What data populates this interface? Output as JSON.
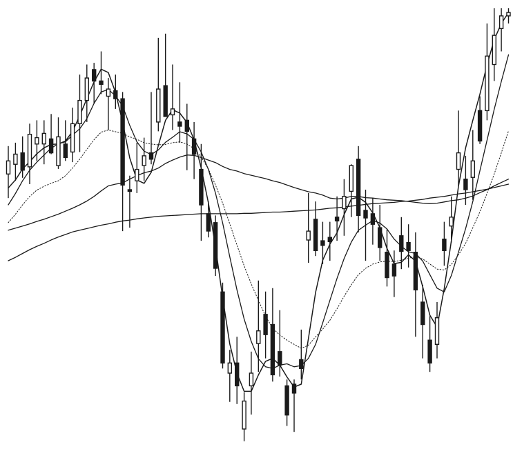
{
  "chart_data": {
    "type": "candlestick",
    "title": "",
    "xlabel": "",
    "ylabel": "",
    "axes_visible": false,
    "grid": false,
    "legend": "none",
    "ylim": [
      0,
      100
    ],
    "colors": {
      "ink": "#1a1a1a",
      "background": "#ffffff"
    },
    "candles": [
      {
        "i": 0,
        "o": 60.8,
        "h": 67.4,
        "l": 55.1,
        "c": 63.9
      },
      {
        "i": 1,
        "o": 63.1,
        "h": 68.2,
        "l": 59.2,
        "c": 65.5
      },
      {
        "i": 2,
        "o": 65.8,
        "h": 69.7,
        "l": 59.9,
        "c": 61.7
      },
      {
        "i": 3,
        "o": 62.5,
        "h": 72.7,
        "l": 58.4,
        "c": 70.2
      },
      {
        "i": 4,
        "o": 67.9,
        "h": 73.5,
        "l": 63.9,
        "c": 69.4
      },
      {
        "i": 5,
        "o": 67.9,
        "h": 73.5,
        "l": 63.1,
        "c": 70.4
      },
      {
        "i": 6,
        "o": 69.1,
        "h": 75.0,
        "l": 65.5,
        "c": 65.8
      },
      {
        "i": 7,
        "o": 62.8,
        "h": 74.2,
        "l": 62.0,
        "c": 69.6
      },
      {
        "i": 8,
        "o": 67.9,
        "h": 73.5,
        "l": 63.9,
        "c": 64.7
      },
      {
        "i": 9,
        "o": 66.0,
        "h": 76.5,
        "l": 63.6,
        "c": 72.7
      },
      {
        "i": 10,
        "o": 72.7,
        "h": 84.3,
        "l": 66.0,
        "c": 78.2
      },
      {
        "i": 11,
        "o": 78.2,
        "h": 86.7,
        "l": 73.1,
        "c": 83.5
      },
      {
        "i": 12,
        "o": 85.5,
        "h": 87.1,
        "l": 77.4,
        "c": 82.8
      },
      {
        "i": 13,
        "o": 82.8,
        "h": 89.8,
        "l": 79.7,
        "c": 82.0
      },
      {
        "i": 14,
        "o": 79.2,
        "h": 83.5,
        "l": 71.2,
        "c": 80.9
      },
      {
        "i": 15,
        "o": 80.5,
        "h": 84.3,
        "l": 76.2,
        "c": 78.6
      },
      {
        "i": 16,
        "o": 78.6,
        "h": 80.2,
        "l": 47.3,
        "c": 58.2
      },
      {
        "i": 17,
        "o": 57.1,
        "h": 60.4,
        "l": 48.1,
        "c": 56.7
      },
      {
        "i": 18,
        "o": 59.2,
        "h": 68.2,
        "l": 56.3,
        "c": 61.9
      },
      {
        "i": 19,
        "o": 62.8,
        "h": 69.4,
        "l": 59.2,
        "c": 65.1
      },
      {
        "i": 20,
        "o": 65.8,
        "h": 80.2,
        "l": 63.1,
        "c": 64.3
      },
      {
        "i": 21,
        "o": 73.1,
        "h": 93.0,
        "l": 70.9,
        "c": 80.9
      },
      {
        "i": 22,
        "o": 81.7,
        "h": 94.0,
        "l": 74.4,
        "c": 74.4
      },
      {
        "i": 23,
        "o": 74.8,
        "h": 86.7,
        "l": 71.2,
        "c": 76.2
      },
      {
        "i": 24,
        "o": 73.1,
        "h": 82.5,
        "l": 68.2,
        "c": 72.1
      },
      {
        "i": 25,
        "o": 73.5,
        "h": 77.4,
        "l": 61.7,
        "c": 70.9
      },
      {
        "i": 26,
        "o": 69.1,
        "h": 73.1,
        "l": 59.6,
        "c": 65.5
      },
      {
        "i": 27,
        "o": 61.9,
        "h": 67.9,
        "l": 45.0,
        "c": 53.5
      },
      {
        "i": 28,
        "o": 51.4,
        "h": 54.3,
        "l": 45.8,
        "c": 47.3
      },
      {
        "i": 29,
        "o": 49.3,
        "h": 51.0,
        "l": 36.7,
        "c": 38.5
      },
      {
        "i": 30,
        "o": 32.9,
        "h": 35.1,
        "l": 14.8,
        "c": 16.1
      },
      {
        "i": 31,
        "o": 13.7,
        "h": 19.2,
        "l": 6.9,
        "c": 16.1
      },
      {
        "i": 32,
        "o": 16.1,
        "h": 22.3,
        "l": 6.4,
        "c": 10.7
      },
      {
        "i": 33,
        "o": 0.5,
        "h": 9.2,
        "l": -2.4,
        "c": 7.1
      },
      {
        "i": 34,
        "o": 10.7,
        "h": 18.8,
        "l": 3.9,
        "c": 13.7
      },
      {
        "i": 35,
        "o": 20.7,
        "h": 35.6,
        "l": 14.0,
        "c": 23.7
      },
      {
        "i": 36,
        "o": 27.6,
        "h": 33.0,
        "l": 17.2,
        "c": 22.8
      },
      {
        "i": 37,
        "o": 25.2,
        "h": 33.8,
        "l": 11.7,
        "c": 13.3
      },
      {
        "i": 38,
        "o": 18.8,
        "h": 28.6,
        "l": 12.9,
        "c": 15.6
      },
      {
        "i": 39,
        "o": 10.7,
        "h": 12.2,
        "l": 1.2,
        "c": 3.8
      },
      {
        "i": 40,
        "o": 11.1,
        "h": 12.2,
        "l": -0.2,
        "c": 9.0
      },
      {
        "i": 41,
        "o": 16.9,
        "h": 24.0,
        "l": 12.2,
        "c": 14.8
      },
      {
        "i": 42,
        "o": 45.2,
        "h": 56.3,
        "l": 39.8,
        "c": 47.3
      },
      {
        "i": 43,
        "o": 50.1,
        "h": 54.3,
        "l": 41.4,
        "c": 42.7
      },
      {
        "i": 44,
        "o": 45.0,
        "h": 49.5,
        "l": 39.5,
        "c": 43.9
      },
      {
        "i": 45,
        "o": 45.8,
        "h": 49.5,
        "l": 40.3,
        "c": 44.8
      },
      {
        "i": 46,
        "o": 50.6,
        "h": 55.5,
        "l": 45.0,
        "c": 49.7
      },
      {
        "i": 47,
        "o": 52.6,
        "h": 59.6,
        "l": 46.2,
        "c": 55.5
      },
      {
        "i": 48,
        "o": 56.7,
        "h": 63.1,
        "l": 50.6,
        "c": 62.8
      },
      {
        "i": 49,
        "o": 64.3,
        "h": 67.4,
        "l": 47.0,
        "c": 51.0
      },
      {
        "i": 50,
        "o": 52.2,
        "h": 57.1,
        "l": 40.3,
        "c": 50.4
      },
      {
        "i": 51,
        "o": 51.4,
        "h": 55.1,
        "l": 44.1,
        "c": 48.9
      },
      {
        "i": 52,
        "o": 48.1,
        "h": 53.5,
        "l": 40.3,
        "c": 43.4
      },
      {
        "i": 53,
        "o": 42.3,
        "h": 47.7,
        "l": 34.2,
        "c": 36.3
      },
      {
        "i": 54,
        "o": 39.5,
        "h": 42.7,
        "l": 31.7,
        "c": 36.7
      },
      {
        "i": 55,
        "o": 46.2,
        "h": 50.6,
        "l": 38.3,
        "c": 42.5
      },
      {
        "i": 56,
        "o": 44.6,
        "h": 48.9,
        "l": 38.7,
        "c": 42.7
      },
      {
        "i": 57,
        "o": 42.3,
        "h": 47.0,
        "l": 22.3,
        "c": 33.4
      },
      {
        "i": 58,
        "o": 30.5,
        "h": 34.6,
        "l": 17.2,
        "c": 25.2
      },
      {
        "i": 59,
        "o": 21.5,
        "h": 27.2,
        "l": 14.0,
        "c": 16.1
      },
      {
        "i": 60,
        "o": 20.5,
        "h": 30.5,
        "l": 17.2,
        "c": 26.8
      },
      {
        "i": 61,
        "o": 45.4,
        "h": 49.5,
        "l": 39.1,
        "c": 42.7
      },
      {
        "i": 62,
        "o": 48.5,
        "h": 55.5,
        "l": 44.6,
        "c": 50.6
      },
      {
        "i": 63,
        "o": 61.9,
        "h": 75.8,
        "l": 57.9,
        "c": 65.8
      },
      {
        "i": 64,
        "o": 59.6,
        "h": 65.1,
        "l": 53.5,
        "c": 57.1
      },
      {
        "i": 65,
        "o": 60.0,
        "h": 71.2,
        "l": 54.7,
        "c": 63.9
      },
      {
        "i": 66,
        "o": 75.8,
        "h": 79.2,
        "l": 67.9,
        "c": 68.6
      },
      {
        "i": 67,
        "o": 75.8,
        "h": 96.4,
        "l": 73.5,
        "c": 88.7
      },
      {
        "i": 68,
        "o": 86.7,
        "h": 100.0,
        "l": 82.8,
        "c": 93.6
      },
      {
        "i": 69,
        "o": 95.2,
        "h": 100.0,
        "l": 89.8,
        "c": 98.2
      },
      {
        "i": 70,
        "o": 98.2,
        "h": 100.0,
        "l": 96.4,
        "c": 99.0
      }
    ],
    "moving_averages": [
      {
        "period": "fast",
        "style": "solid",
        "width": 1.5,
        "values": [
          57.5,
          59.4,
          62.0,
          63.7,
          65.6,
          67.0,
          67.8,
          67.9,
          68.6,
          70.9,
          74.6,
          78.6,
          82.6,
          85.6,
          84.8,
          80.1,
          73.1,
          64.6,
          59.4,
          58.6,
          61.2,
          67.5,
          73.5,
          76.0,
          75.2,
          73.0,
          68.9,
          62.2,
          54.0,
          43.6,
          31.5,
          20.6,
          13.7,
          9.4,
          9.4,
          13.3,
          16.5,
          17.2,
          15.6,
          12.8,
          10.4,
          11.1,
          21.9,
          32.8,
          40.4,
          44.2,
          46.9,
          51.2,
          54.9,
          55.3,
          54.1,
          51.6,
          48.1,
          43.2,
          39.6,
          39.9,
          41.7,
          40.2,
          34.1,
          27.4,
          24.6,
          33.7,
          45.0,
          57.9,
          67.0,
          73.5,
          79.7,
          86.6,
          92.6,
          96.4,
          99.0
        ]
      },
      {
        "period": "medium",
        "style": "solid",
        "width": 1.3,
        "values": [
          53.5,
          56.2,
          59.2,
          61.7,
          63.6,
          65.3,
          66.9,
          68.0,
          68.4,
          70.0,
          71.5,
          73.9,
          77.5,
          80.2,
          80.8,
          79.3,
          76.9,
          72.3,
          68.4,
          66.2,
          65.4,
          66.5,
          68.3,
          69.5,
          70.8,
          70.3,
          69.0,
          66.0,
          61.9,
          56.3,
          49.2,
          41.2,
          33.4,
          26.5,
          21.2,
          17.1,
          15.2,
          14.8,
          15.6,
          15.9,
          15.2,
          15.5,
          17.2,
          20.5,
          25.6,
          30.9,
          36.1,
          40.8,
          44.7,
          47.5,
          48.7,
          49.8,
          49.2,
          47.8,
          45.4,
          43.7,
          42.4,
          42.0,
          40.2,
          37.0,
          33.8,
          32.9,
          36.8,
          42.3,
          47.9,
          54.3,
          61.6,
          68.8,
          76.1,
          82.7,
          89.0
        ]
      },
      {
        "period": "slow-dotted",
        "style": "dotted",
        "width": 1.0,
        "values": [
          49.3,
          51.3,
          53.5,
          55.5,
          57.0,
          57.9,
          58.6,
          59.2,
          60.4,
          62.2,
          64.3,
          66.6,
          68.9,
          70.7,
          71.2,
          70.8,
          70.4,
          69.6,
          69.0,
          68.2,
          67.9,
          67.7,
          67.8,
          68.2,
          68.4,
          67.9,
          66.8,
          64.8,
          62.0,
          58.2,
          53.9,
          49.0,
          44.0,
          39.1,
          34.8,
          30.9,
          27.2,
          24.3,
          22.7,
          21.5,
          20.5,
          19.6,
          20.3,
          22.3,
          24.1,
          26.2,
          28.9,
          31.9,
          34.6,
          37.0,
          38.5,
          39.5,
          40.0,
          40.2,
          40.1,
          40.4,
          40.9,
          41.2,
          40.7,
          39.5,
          38.3,
          38.1,
          39.4,
          41.7,
          44.4,
          48.1,
          51.9,
          56.2,
          60.8,
          65.8,
          71.0
        ]
      },
      {
        "period": "long",
        "style": "solid",
        "width": 1.3,
        "values": [
          47.5,
          48.0,
          48.5,
          49.0,
          49.6,
          50.1,
          50.7,
          51.3,
          52.0,
          52.7,
          53.5,
          54.4,
          55.5,
          56.8,
          58.0,
          58.4,
          58.7,
          59.6,
          60.4,
          61.1,
          61.5,
          62.2,
          63.3,
          64.1,
          64.8,
          65.3,
          65.2,
          64.7,
          64.1,
          63.5,
          62.6,
          61.9,
          61.5,
          60.9,
          60.5,
          60.1,
          59.7,
          59.2,
          58.8,
          58.2,
          57.6,
          57.1,
          56.6,
          56.3,
          55.8,
          55.1,
          54.9,
          55.1,
          55.5,
          55.5,
          55.2,
          55.1,
          54.9,
          54.7,
          54.6,
          54.5,
          54.3,
          54.1,
          53.9,
          53.8,
          53.9,
          54.2,
          54.5,
          54.7,
          55.1,
          55.6,
          56.4,
          57.1,
          58.0,
          58.8,
          59.6
        ]
      },
      {
        "period": "longest",
        "style": "solid",
        "width": 1.3,
        "values": [
          40.3,
          41.1,
          42.0,
          42.9,
          43.7,
          44.4,
          45.2,
          45.9,
          46.5,
          47.1,
          47.5,
          47.9,
          48.3,
          48.7,
          49.0,
          49.4,
          49.7,
          49.9,
          50.2,
          50.4,
          50.6,
          50.8,
          50.9,
          51.0,
          51.1,
          51.2,
          51.3,
          51.4,
          51.4,
          51.4,
          51.4,
          51.4,
          51.4,
          51.5,
          51.5,
          51.6,
          51.7,
          51.8,
          51.8,
          51.9,
          52.0,
          52.1,
          52.2,
          52.3,
          52.5,
          52.7,
          52.8,
          53.0,
          53.2,
          53.4,
          53.6,
          53.8,
          53.9,
          54.0,
          54.1,
          54.3,
          54.4,
          54.6,
          54.8,
          55.1,
          55.3,
          55.5,
          55.8,
          56.1,
          56.3,
          56.6,
          56.9,
          57.2,
          57.6,
          58.0,
          58.4
        ]
      }
    ]
  }
}
